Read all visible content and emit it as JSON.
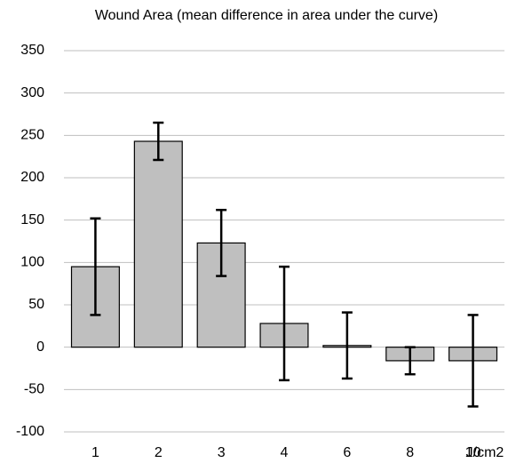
{
  "chart_data": {
    "type": "bar",
    "title": "Wound Area (mean difference in area under the curve)",
    "x_label": "J/cm2",
    "categories": [
      "1",
      "2",
      "3",
      "4",
      "6",
      "8",
      "10"
    ],
    "values": [
      95,
      243,
      123,
      28,
      2,
      -16,
      -16
    ],
    "errors": [
      57,
      22,
      39,
      67,
      39,
      16,
      54
    ],
    "color": "#bfbfbf",
    "ylim": [
      -100,
      350
    ],
    "yticks": [
      350,
      300,
      250,
      200,
      150,
      100,
      50,
      0,
      -50,
      -100
    ],
    "grid": true
  }
}
